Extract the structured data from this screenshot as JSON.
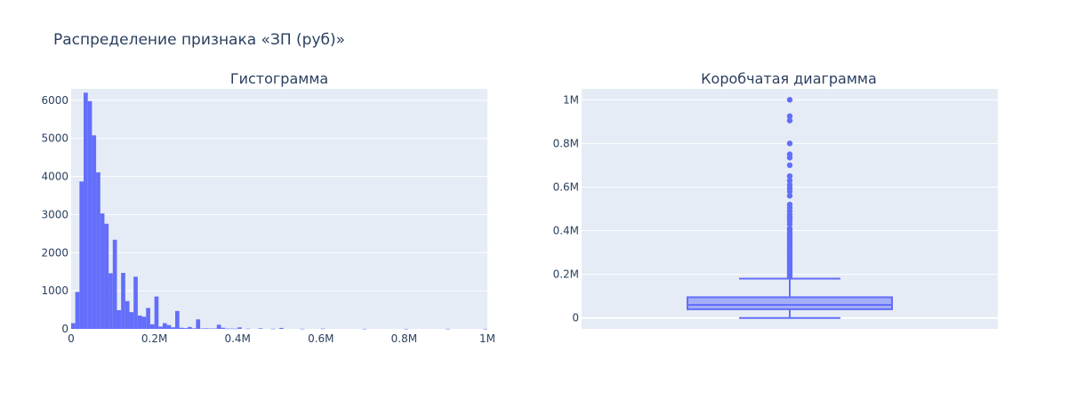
{
  "title": "Распределение признака «ЗП (руб)»",
  "colors": {
    "plot_bg": "#e5ecf6",
    "grid": "#ffffff",
    "trace": "#636efa",
    "text": "#2a3f5f"
  },
  "chart_data": [
    {
      "type": "bar",
      "subtitle": "Гистограмма",
      "x_ticks": [
        "0",
        "0.2M",
        "0.4M",
        "0.6M",
        "0.8M",
        "1M"
      ],
      "y_ticks": [
        "0",
        "1000",
        "2000",
        "3000",
        "4000",
        "5000",
        "6000"
      ],
      "xlim": [
        0,
        1000000
      ],
      "ylim": [
        0,
        6300
      ],
      "bin_width": 10000,
      "bins": [
        {
          "x": 0,
          "y": 150
        },
        {
          "x": 10000,
          "y": 970
        },
        {
          "x": 20000,
          "y": 3870
        },
        {
          "x": 30000,
          "y": 6200
        },
        {
          "x": 40000,
          "y": 5980
        },
        {
          "x": 50000,
          "y": 5080
        },
        {
          "x": 60000,
          "y": 4110
        },
        {
          "x": 70000,
          "y": 3030
        },
        {
          "x": 80000,
          "y": 2760
        },
        {
          "x": 90000,
          "y": 1460
        },
        {
          "x": 100000,
          "y": 2340
        },
        {
          "x": 110000,
          "y": 490
        },
        {
          "x": 120000,
          "y": 1470
        },
        {
          "x": 130000,
          "y": 730
        },
        {
          "x": 140000,
          "y": 440
        },
        {
          "x": 150000,
          "y": 1370
        },
        {
          "x": 160000,
          "y": 350
        },
        {
          "x": 170000,
          "y": 320
        },
        {
          "x": 180000,
          "y": 550
        },
        {
          "x": 190000,
          "y": 120
        },
        {
          "x": 200000,
          "y": 850
        },
        {
          "x": 210000,
          "y": 60
        },
        {
          "x": 220000,
          "y": 150
        },
        {
          "x": 230000,
          "y": 100
        },
        {
          "x": 240000,
          "y": 40
        },
        {
          "x": 250000,
          "y": 470
        },
        {
          "x": 260000,
          "y": 30
        },
        {
          "x": 270000,
          "y": 20
        },
        {
          "x": 280000,
          "y": 50
        },
        {
          "x": 290000,
          "y": 15
        },
        {
          "x": 300000,
          "y": 250
        },
        {
          "x": 310000,
          "y": 10
        },
        {
          "x": 320000,
          "y": 15
        },
        {
          "x": 330000,
          "y": 10
        },
        {
          "x": 340000,
          "y": 10
        },
        {
          "x": 350000,
          "y": 110
        },
        {
          "x": 360000,
          "y": 30
        },
        {
          "x": 370000,
          "y": 8
        },
        {
          "x": 380000,
          "y": 8
        },
        {
          "x": 390000,
          "y": 6
        },
        {
          "x": 400000,
          "y": 40
        },
        {
          "x": 420000,
          "y": 6
        },
        {
          "x": 450000,
          "y": 15
        },
        {
          "x": 480000,
          "y": 4
        },
        {
          "x": 500000,
          "y": 25
        },
        {
          "x": 550000,
          "y": 3
        },
        {
          "x": 600000,
          "y": 8
        },
        {
          "x": 700000,
          "y": 2
        },
        {
          "x": 800000,
          "y": 2
        },
        {
          "x": 900000,
          "y": 2
        },
        {
          "x": 990000,
          "y": 1
        }
      ]
    },
    {
      "type": "box",
      "subtitle": "Коробчатая диаграмма",
      "y_ticks": [
        "0",
        "0.2M",
        "0.4M",
        "0.6M",
        "0.8M",
        "1M"
      ],
      "ylim": [
        -50000,
        1050000
      ],
      "lower_fence": 0,
      "q1": 40000,
      "median": 60000,
      "q3": 95000,
      "upper_fence": 180000,
      "outliers": [
        1000000,
        925000,
        905000,
        800000,
        750000,
        735000,
        700000,
        650000,
        630000,
        610000,
        595000,
        580000,
        560000,
        520000,
        505000,
        490000,
        475000,
        465000,
        455000,
        445000,
        430000,
        410000,
        400000,
        390000,
        380000,
        370000,
        360000,
        350000,
        340000,
        330000,
        320000,
        310000,
        300000,
        290000,
        280000,
        270000,
        260000,
        250000,
        240000,
        230000,
        220000,
        210000,
        200000,
        190000
      ]
    }
  ]
}
